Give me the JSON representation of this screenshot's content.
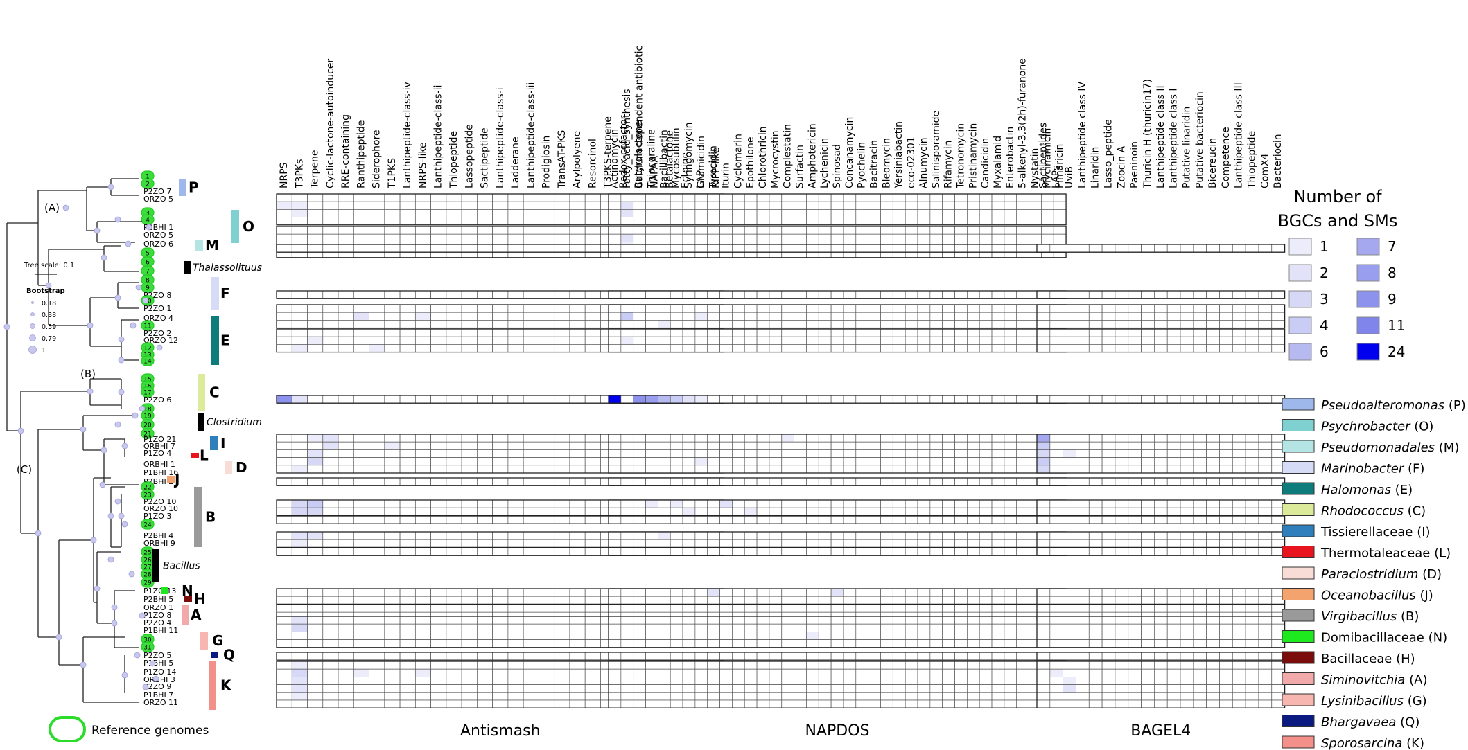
{
  "tree": {
    "clade_labels": [
      "(A)",
      "(B)",
      "(C)"
    ],
    "tree_scale": "Tree scale: 0.1",
    "bootstrap_title": "Bootstrap",
    "bootstrap_values": [
      "0.18",
      "0.38",
      "0.59",
      "0.79",
      "1"
    ],
    "reference_legend": "Reference genomes",
    "taxa": [
      {
        "name": "",
        "ref": "1"
      },
      {
        "name": "",
        "ref": "2"
      },
      {
        "name": "P2ZO 7"
      },
      {
        "name": "ORZO 5"
      },
      {
        "name": "",
        "ref": "3"
      },
      {
        "name": "",
        "ref": "4"
      },
      {
        "name": "P2BHI 1"
      },
      {
        "name": "ORZO 5"
      },
      {
        "name": "ORZO 6"
      },
      {
        "name": "",
        "ref": "5"
      },
      {
        "name": "",
        "ref": "6"
      },
      {
        "name": "",
        "ref": "7"
      },
      {
        "name": "",
        "ref": "8"
      },
      {
        "name": "",
        "ref": "9"
      },
      {
        "name": "P2ZO 8"
      },
      {
        "name": "",
        "ref": "10"
      },
      {
        "name": "P2ZO 1"
      },
      {
        "name": "ORZO 4"
      },
      {
        "name": "",
        "ref": "11"
      },
      {
        "name": "P2ZO 2"
      },
      {
        "name": "ORZO 12"
      },
      {
        "name": "",
        "ref": "12"
      },
      {
        "name": "",
        "ref": "13"
      },
      {
        "name": "",
        "ref": "14"
      },
      {
        "name": "",
        "ref": "15"
      },
      {
        "name": "",
        "ref": "16"
      },
      {
        "name": "",
        "ref": "17"
      },
      {
        "name": "P2ZO 6"
      },
      {
        "name": "",
        "ref": "18"
      },
      {
        "name": "",
        "ref": "19"
      },
      {
        "name": "",
        "ref": "20"
      },
      {
        "name": "",
        "ref": "21"
      },
      {
        "name": "P1ZO 21"
      },
      {
        "name": "ORBHI 7"
      },
      {
        "name": "P1ZO 4"
      },
      {
        "name": "ORBHI 1"
      },
      {
        "name": "P1BHI 16"
      },
      {
        "name": "P2BHI 2"
      },
      {
        "name": "",
        "ref": "22"
      },
      {
        "name": "",
        "ref": "23"
      },
      {
        "name": "P2ZO 10"
      },
      {
        "name": "ORZO 10"
      },
      {
        "name": "P1ZO 3"
      },
      {
        "name": "",
        "ref": "24"
      },
      {
        "name": "P2BHI 4"
      },
      {
        "name": "ORBHI 9"
      },
      {
        "name": "",
        "ref": "25"
      },
      {
        "name": "",
        "ref": "26"
      },
      {
        "name": "",
        "ref": "27"
      },
      {
        "name": "",
        "ref": "28"
      },
      {
        "name": "",
        "ref": "29"
      },
      {
        "name": "P1ZO 13"
      },
      {
        "name": "P2BHI 5"
      },
      {
        "name": "ORZO 1"
      },
      {
        "name": "P1ZO 8"
      },
      {
        "name": "P2ZO 4"
      },
      {
        "name": "P1BHI 11"
      },
      {
        "name": "",
        "ref": "30"
      },
      {
        "name": "",
        "ref": "31"
      },
      {
        "name": "P2ZO 5"
      },
      {
        "name": "P1BHI 5"
      },
      {
        "name": "P1ZO 14"
      },
      {
        "name": "ORBHI 3"
      },
      {
        "name": "P2ZO 9"
      },
      {
        "name": "P1BHI 7"
      },
      {
        "name": "ORZO 11"
      }
    ],
    "group_markers": [
      {
        "label": "P",
        "color": "#9fb8ec"
      },
      {
        "label": "O",
        "color": "#7fd0d0"
      },
      {
        "label": "M",
        "color": "#b4e4e4"
      },
      {
        "label": "Thalassolituus",
        "color": "#000000"
      },
      {
        "label": "F",
        "color": "#d7dcf6"
      },
      {
        "label": "E",
        "color": "#0e7c7b"
      },
      {
        "label": "C",
        "color": "#dcea9c"
      },
      {
        "label": "Clostridium",
        "color": "#000000"
      },
      {
        "label": "I",
        "color": "#2f7fbd"
      },
      {
        "label": "L",
        "color": "#e8141e"
      },
      {
        "label": "D",
        "color": "#f8dcd6"
      },
      {
        "label": "J",
        "color": "#f3a36e"
      },
      {
        "label": "B",
        "color": "#9a9a9a"
      },
      {
        "label": "Bacillus",
        "color": "#000000"
      },
      {
        "label": "N",
        "color": "#1ee81e"
      },
      {
        "label": "H",
        "color": "#7a0c0c"
      },
      {
        "label": "A",
        "color": "#f1a9a9"
      },
      {
        "label": "G",
        "color": "#f7b7b0"
      },
      {
        "label": "Q",
        "color": "#0a1a80"
      },
      {
        "label": "K",
        "color": "#f4908a"
      }
    ]
  },
  "heatmap": {
    "panels": [
      {
        "title": "Antismash",
        "columns": [
          "NRPS",
          "T3PKs",
          "Terpene",
          "Cyclic-lactone-autoinducer",
          "RRE-containing",
          "Ranthipeptide",
          "Siderophore",
          "T1PKS",
          "Lanthipeptide-class-iv",
          "NRPS-like",
          "Lanthipeptide-class-ii",
          "Thiopeptide",
          "Lassopeptide",
          "Sactipeptide",
          "Lanthipeptide-class-i",
          "Ladderane",
          "Lanthipeptide-class-iii",
          "Prodigiosin",
          "TransAT-PKS",
          "Arylpolyene",
          "Resorcinol",
          "T3PKS-terpene",
          "Redox-cofactor",
          "Butyrolactone",
          "NAPAA",
          "Betalactone",
          "Ectoine",
          "LAP",
          "RiPP-like"
        ]
      },
      {
        "title": "NAPDOS",
        "columns": [
          "Actinomycin",
          "Fatty_acid_synthesis",
          "Calcium dependent antibiotic",
          "Thiocoraline",
          "Bacillibactin",
          "Mycosubtilin",
          "Syringomycin",
          "Gramicidin",
          "Tyrocidin",
          "Iturin",
          "Cyclomarin",
          "Epothilone",
          "Chlorothricin",
          "Mycrocystin",
          "Complestatin",
          "Surfactin",
          "Amphotericin",
          "Lychenicin",
          "Spinosad",
          "Concanamycin",
          "Pyochelin",
          "Bacitracin",
          "Bleomycin",
          "Yersiniabactin",
          "eco-02301",
          "Alnumycin",
          "Salinisporamide",
          "Rifamycin",
          "Tetronomycin",
          "Pristinamycin",
          "Candicidin",
          "Myxalamid",
          "Enterobactin",
          "5-alkenyl-3,3(2h)-furanone",
          "Nystatin",
          "Mycinamicin",
          "Pimaricin"
        ]
      },
      {
        "title": "BAGEL4",
        "columns": [
          "Sactipeptides",
          "LAPs",
          "UviB",
          "Lanthipeptide class IV",
          "Linaridin",
          "Lasso_peptide",
          "Zoocin A",
          "Paeninoin",
          "Thuricin H (thuricin17)",
          "Lanthipeptide class II",
          "Lanthipeptide class I",
          "Putative linaridin",
          "Putative bacteriocin",
          "Bicereucin",
          "Competence",
          "Lanthipeptide class III",
          "Thiopeptide",
          "ComX4",
          "Bacteriocin"
        ]
      }
    ],
    "row_blocks": [
      2,
      3,
      0,
      1,
      2,
      3,
      0,
      1,
      5,
      1,
      3,
      2,
      0,
      1,
      1,
      3,
      1,
      6
    ],
    "counts_legend": {
      "title_line1": "Number of",
      "title_line2": "BGCs and SMs",
      "items": [
        {
          "label": "1",
          "color": "#ececfa"
        },
        {
          "label": "7",
          "color": "#a5a8ef"
        },
        {
          "label": "2",
          "color": "#e2e3f8"
        },
        {
          "label": "8",
          "color": "#9a9eee"
        },
        {
          "label": "3",
          "color": "#d6d8f6"
        },
        {
          "label": "9",
          "color": "#8d92ec"
        },
        {
          "label": "4",
          "color": "#c9ccf4"
        },
        {
          "label": "11",
          "color": "#7f85ea"
        },
        {
          "label": "6",
          "color": "#b7baf1"
        },
        {
          "label": "24",
          "color": "#0000ee"
        }
      ]
    }
  },
  "taxa_legend": [
    {
      "name": "Pseudoalteromonas",
      "code": "(P)",
      "italic": true,
      "color": "#9fb8ec"
    },
    {
      "name": "Psychrobacter",
      "code": "(O)",
      "italic": true,
      "color": "#7fd0d0"
    },
    {
      "name": "Pseudomonadales",
      "code": "(M)",
      "italic": true,
      "color": "#b4e4e4"
    },
    {
      "name": "Marinobacter",
      "code": "(F)",
      "italic": true,
      "color": "#d7dcf6"
    },
    {
      "name": "Halomonas",
      "code": "(E)",
      "italic": true,
      "color": "#0e7c7b"
    },
    {
      "name": "Rhodococcus",
      "code": "(C)",
      "italic": true,
      "color": "#dcea9c"
    },
    {
      "name": "Tissierellaceae",
      "code": "(I)",
      "italic": false,
      "color": "#2f7fbd"
    },
    {
      "name": "Thermotaleaceae",
      "code": "(L)",
      "italic": false,
      "color": "#e8141e"
    },
    {
      "name": "Paraclostridium",
      "code": "(D)",
      "italic": true,
      "color": "#f8dcd6"
    },
    {
      "name": "Oceanobacillus",
      "code": "(J)",
      "italic": true,
      "color": "#f3a36e"
    },
    {
      "name": "Virgibacillus",
      "code": "(B)",
      "italic": true,
      "color": "#9a9a9a"
    },
    {
      "name": "Domibacillaceae",
      "code": "(N)",
      "italic": false,
      "color": "#1ee81e"
    },
    {
      "name": "Bacillaceae",
      "code": "(H)",
      "italic": false,
      "color": "#7a0c0c"
    },
    {
      "name": "Siminovitchia",
      "code": "(A)",
      "italic": true,
      "color": "#f1a9a9"
    },
    {
      "name": "Lysinibacillus",
      "code": "(G)",
      "italic": true,
      "color": "#f7b7b0"
    },
    {
      "name": "Bhargavaea",
      "code": "(Q)",
      "italic": true,
      "color": "#0a1a80"
    },
    {
      "name": "Sporosarcina",
      "code": "(K)",
      "italic": true,
      "color": "#f4908a"
    }
  ]
}
